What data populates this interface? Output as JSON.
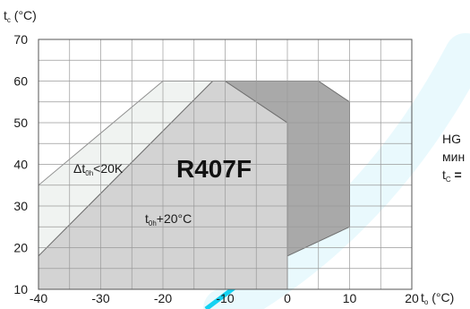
{
  "chart_data": {
    "type": "area",
    "title": "",
    "refrigerant_label": "R407F",
    "y_axis": {
      "var": "t",
      "sub": "c",
      "unit": " (°C)"
    },
    "x_axis": {
      "var": "t",
      "sub": "o",
      "unit": " (°C)"
    },
    "xlim": [
      -40,
      20
    ],
    "ylim": [
      10,
      70
    ],
    "x_ticks": [
      -40,
      -30,
      -20,
      -10,
      0,
      10,
      20
    ],
    "y_ticks": [
      10,
      20,
      30,
      40,
      50,
      60,
      70
    ],
    "grid": true,
    "minor_grid_step_x": 5,
    "minor_grid_step_y": 5,
    "regions": [
      {
        "id": "delta-t-lt-20k",
        "color": "#f0f3f1",
        "stroke": "#8f8f8f",
        "points": [
          [
            -40,
            35
          ],
          [
            -40,
            18
          ],
          [
            -12,
            60
          ],
          [
            -20,
            60
          ]
        ]
      },
      {
        "id": "superheat-20",
        "color": "#d3d3d3",
        "stroke": "#6f6f6f",
        "points": [
          [
            -40,
            10
          ],
          [
            -40,
            18
          ],
          [
            -12,
            60
          ],
          [
            -10,
            60
          ],
          [
            0,
            50
          ],
          [
            0,
            10
          ]
        ]
      },
      {
        "id": "dark",
        "color": "#a9a9a9",
        "stroke": "#6f6f6f",
        "points": [
          [
            0,
            10
          ],
          [
            0,
            50
          ],
          [
            -10,
            60
          ],
          [
            5,
            60
          ],
          [
            10,
            55
          ],
          [
            10,
            25
          ],
          [
            0,
            18
          ]
        ]
      }
    ],
    "labels": {
      "delta_prefix": "Δt",
      "delta_sub": "0h",
      "delta_suffix": "<20K",
      "superheat_prefix": "t",
      "superheat_sub": "0h",
      "superheat_suffix": "+20°C"
    }
  },
  "side_note": {
    "line1": "HG",
    "line2": "мин",
    "line3_var": "t",
    "line3_sub": "C",
    "line3_rest": " ="
  }
}
